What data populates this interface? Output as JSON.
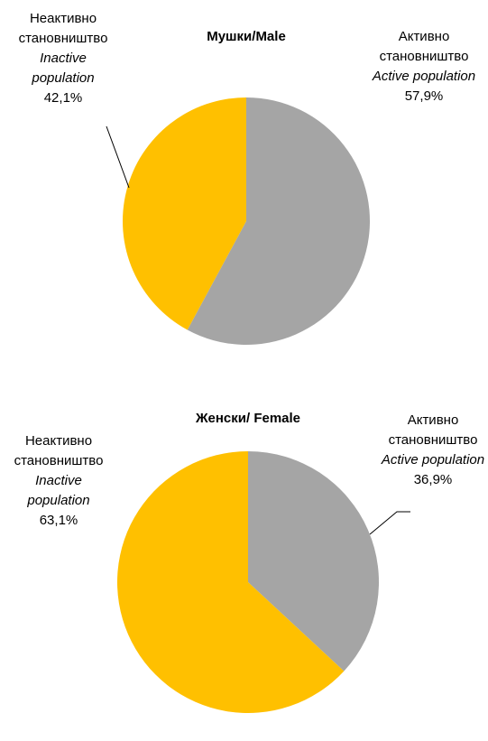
{
  "chart_data": [
    {
      "type": "pie",
      "title": "Мушки/Male",
      "categories": [
        "Активно становништво",
        "Неактивно становништво"
      ],
      "categories_en": [
        "Active population",
        "Inactive population"
      ],
      "values": [
        57.9,
        42.1
      ],
      "value_labels": [
        "57,9%",
        "42,1%"
      ],
      "colors": [
        "#a5a5a5",
        "#ffc000"
      ]
    },
    {
      "type": "pie",
      "title": "Женски/ Female",
      "categories": [
        "Активно становништво",
        "Неактивно становништво"
      ],
      "categories_en": [
        "Active population",
        "Inactive population"
      ],
      "values": [
        36.9,
        63.1
      ],
      "value_labels": [
        "36,9%",
        "63,1%"
      ],
      "colors": [
        "#a5a5a5",
        "#ffc000"
      ]
    }
  ]
}
